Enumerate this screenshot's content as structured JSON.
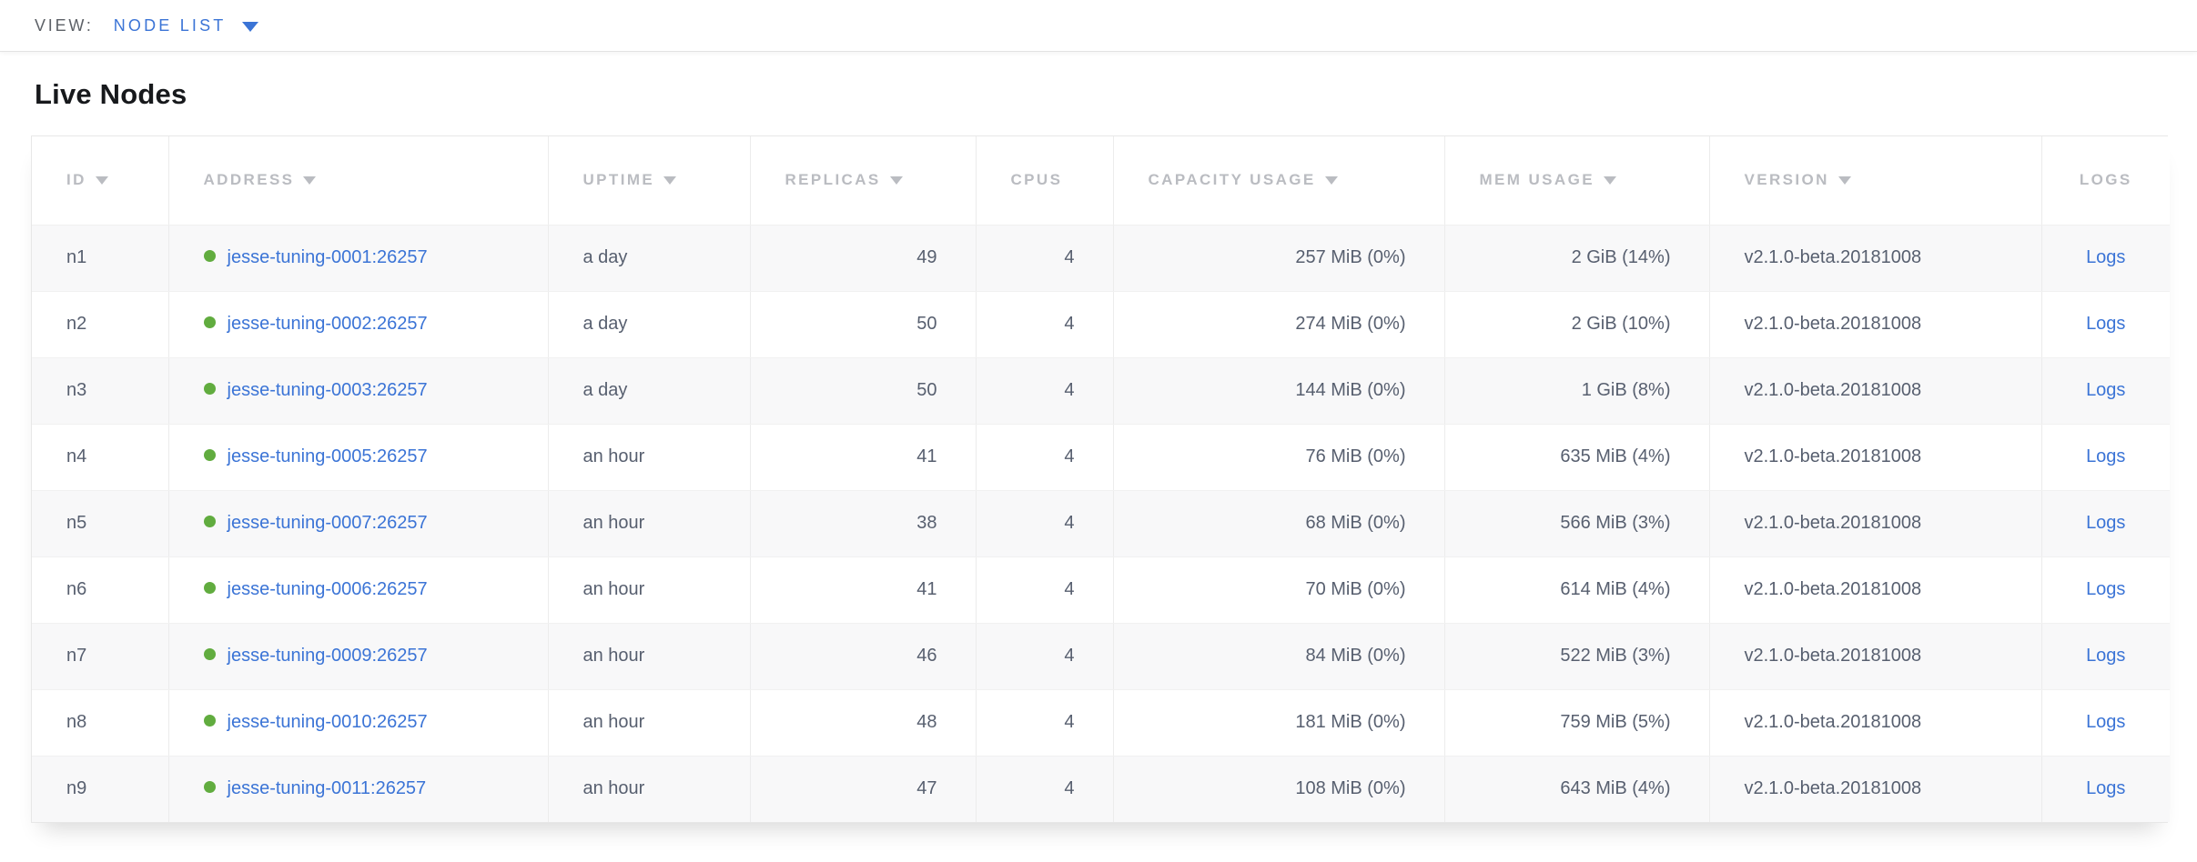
{
  "view_bar": {
    "label": "VIEW:",
    "selected_view": "NODE LIST"
  },
  "page": {
    "title": "Live Nodes"
  },
  "colors": {
    "link_blue": "#3b74d6",
    "healthy_green": "#61ac3f",
    "header_gray": "#babcc1",
    "cell_text": "#575f6f",
    "row_stripe": "#f8f8f9"
  },
  "table": {
    "columns": [
      {
        "key": "id",
        "label": "ID",
        "sortable": true,
        "align": "left"
      },
      {
        "key": "address",
        "label": "ADDRESS",
        "sortable": true,
        "align": "left"
      },
      {
        "key": "uptime",
        "label": "UPTIME",
        "sortable": true,
        "align": "left"
      },
      {
        "key": "replicas",
        "label": "REPLICAS",
        "sortable": true,
        "align": "right"
      },
      {
        "key": "cpus",
        "label": "CPUS",
        "sortable": false,
        "align": "right"
      },
      {
        "key": "capacity_usage",
        "label": "CAPACITY USAGE",
        "sortable": true,
        "align": "right"
      },
      {
        "key": "mem_usage",
        "label": "MEM USAGE",
        "sortable": true,
        "align": "right"
      },
      {
        "key": "version",
        "label": "VERSION",
        "sortable": true,
        "align": "left"
      },
      {
        "key": "logs",
        "label": "LOGS",
        "sortable": false,
        "align": "center"
      }
    ],
    "rows": [
      {
        "id": "n1",
        "status": "healthy",
        "address": "jesse-tuning-0001:26257",
        "uptime": "a day",
        "replicas": "49",
        "cpus": "4",
        "capacity_usage": "257 MiB (0%)",
        "mem_usage": "2 GiB (14%)",
        "version": "v2.1.0-beta.20181008",
        "logs_label": "Logs"
      },
      {
        "id": "n2",
        "status": "healthy",
        "address": "jesse-tuning-0002:26257",
        "uptime": "a day",
        "replicas": "50",
        "cpus": "4",
        "capacity_usage": "274 MiB (0%)",
        "mem_usage": "2 GiB (10%)",
        "version": "v2.1.0-beta.20181008",
        "logs_label": "Logs"
      },
      {
        "id": "n3",
        "status": "healthy",
        "address": "jesse-tuning-0003:26257",
        "uptime": "a day",
        "replicas": "50",
        "cpus": "4",
        "capacity_usage": "144 MiB (0%)",
        "mem_usage": "1 GiB (8%)",
        "version": "v2.1.0-beta.20181008",
        "logs_label": "Logs"
      },
      {
        "id": "n4",
        "status": "healthy",
        "address": "jesse-tuning-0005:26257",
        "uptime": "an hour",
        "replicas": "41",
        "cpus": "4",
        "capacity_usage": "76 MiB (0%)",
        "mem_usage": "635 MiB (4%)",
        "version": "v2.1.0-beta.20181008",
        "logs_label": "Logs"
      },
      {
        "id": "n5",
        "status": "healthy",
        "address": "jesse-tuning-0007:26257",
        "uptime": "an hour",
        "replicas": "38",
        "cpus": "4",
        "capacity_usage": "68 MiB (0%)",
        "mem_usage": "566 MiB (3%)",
        "version": "v2.1.0-beta.20181008",
        "logs_label": "Logs"
      },
      {
        "id": "n6",
        "status": "healthy",
        "address": "jesse-tuning-0006:26257",
        "uptime": "an hour",
        "replicas": "41",
        "cpus": "4",
        "capacity_usage": "70 MiB (0%)",
        "mem_usage": "614 MiB (4%)",
        "version": "v2.1.0-beta.20181008",
        "logs_label": "Logs"
      },
      {
        "id": "n7",
        "status": "healthy",
        "address": "jesse-tuning-0009:26257",
        "uptime": "an hour",
        "replicas": "46",
        "cpus": "4",
        "capacity_usage": "84 MiB (0%)",
        "mem_usage": "522 MiB (3%)",
        "version": "v2.1.0-beta.20181008",
        "logs_label": "Logs"
      },
      {
        "id": "n8",
        "status": "healthy",
        "address": "jesse-tuning-0010:26257",
        "uptime": "an hour",
        "replicas": "48",
        "cpus": "4",
        "capacity_usage": "181 MiB (0%)",
        "mem_usage": "759 MiB (5%)",
        "version": "v2.1.0-beta.20181008",
        "logs_label": "Logs"
      },
      {
        "id": "n9",
        "status": "healthy",
        "address": "jesse-tuning-0011:26257",
        "uptime": "an hour",
        "replicas": "47",
        "cpus": "4",
        "capacity_usage": "108 MiB (0%)",
        "mem_usage": "643 MiB (4%)",
        "version": "v2.1.0-beta.20181008",
        "logs_label": "Logs"
      }
    ]
  }
}
